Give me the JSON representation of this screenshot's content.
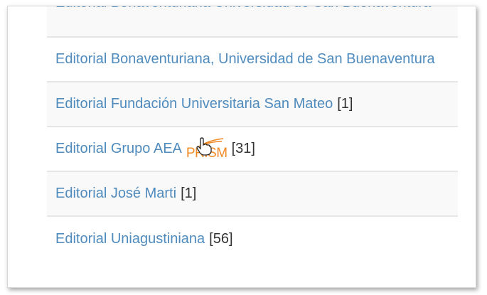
{
  "items": [
    {
      "label": "Editorial Bonaventuriana Universidad de San Buenaventura",
      "count": ""
    },
    {
      "label": "Editorial Bonaventuriana, Universidad de San Buenaventura",
      "count": ""
    },
    {
      "label": "Editorial Fundación Universitaria San Mateo",
      "count": "[1]"
    },
    {
      "label": "Editorial Grupo AEA",
      "count": "[31]"
    },
    {
      "label": "Editorial José Marti",
      "count": "[1]"
    },
    {
      "label": "Editorial Uniagustiniana",
      "count": "[56]"
    }
  ],
  "prism_logo": "PRISM",
  "icons": {
    "cursor": "hand-pointer-icon"
  }
}
